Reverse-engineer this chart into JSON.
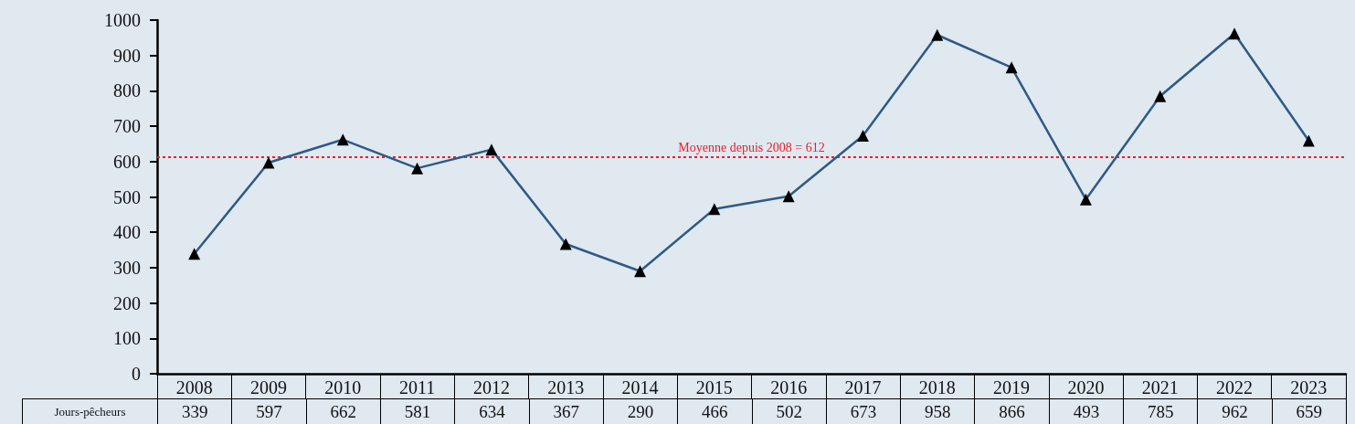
{
  "chart_data": {
    "type": "line",
    "categories": [
      "2008",
      "2009",
      "2010",
      "2011",
      "2012",
      "2013",
      "2014",
      "2015",
      "2016",
      "2017",
      "2018",
      "2019",
      "2020",
      "2021",
      "2022",
      "2023"
    ],
    "series": [
      {
        "name": "Jours-pêcheurs",
        "color": "#2e5a85",
        "values": [
          339,
          597,
          662,
          581,
          634,
          367,
          290,
          466,
          502,
          673,
          958,
          866,
          493,
          785,
          962,
          659
        ]
      }
    ],
    "ylim": [
      0,
      1000
    ],
    "yticks": [
      0,
      100,
      200,
      300,
      400,
      500,
      600,
      700,
      800,
      900,
      1000
    ],
    "ref_lines": [
      {
        "axis": "y",
        "value": 612,
        "label": "Moyenne depuis 2008 = 612",
        "color": "#e8202a",
        "line_style": "dotted"
      }
    ],
    "marker": "triangle",
    "line_style": "solid",
    "data_labels": true
  }
}
